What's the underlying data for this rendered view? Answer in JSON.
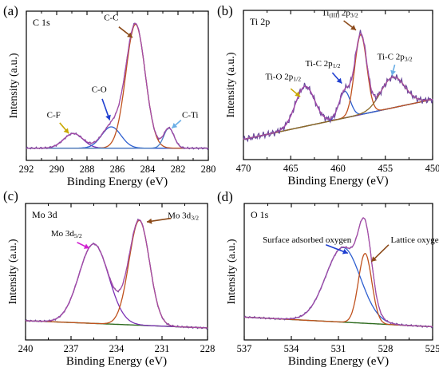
{
  "chart_data": [
    {
      "type": "line",
      "panel": "(a)",
      "title": "C 1s",
      "xlabel": "Binding Energy (eV)",
      "ylabel": "Intensity (a.u.)",
      "xlim": [
        292,
        280
      ],
      "ylim": [
        0,
        1
      ],
      "xticks": [
        292,
        290,
        288,
        286,
        284,
        282,
        280
      ],
      "grid": false,
      "background": {
        "a": 0.02,
        "b": 0.0,
        "step_center": 286.5,
        "step_width": 0.6,
        "step_height": 0.0
      },
      "peaks": [
        {
          "label": "C-F",
          "center": 288.9,
          "amplitude": 0.11,
          "fwhm": 1.5,
          "color": "#7b2fb5"
        },
        {
          "label": "C-O",
          "center": 286.4,
          "amplitude": 0.16,
          "fwhm": 1.5,
          "color": "#2e5fd0"
        },
        {
          "label": "C-C",
          "center": 284.8,
          "amplitude": 0.93,
          "fwhm": 1.5,
          "color": "#c0521e"
        },
        {
          "label": "C-Ti",
          "center": 282.6,
          "amplitude": 0.15,
          "fwhm": 0.8,
          "color": "#4a7fc6"
        }
      ],
      "annotations": [
        {
          "text": "C-C",
          "x": 286.4,
          "y": 0.98,
          "ax": 285.9,
          "ay": 0.93,
          "tx": 285.0,
          "ty": 0.85,
          "arrow_color": "#8b4a1a"
        },
        {
          "text": "C-O",
          "x": 287.2,
          "y": 0.44,
          "ax": 287.0,
          "ay": 0.39,
          "tx": 286.5,
          "ty": 0.23,
          "arrow_color": "#1f3fd0"
        },
        {
          "text": "C-F",
          "x": 290.2,
          "y": 0.25,
          "ax": 289.8,
          "ay": 0.21,
          "tx": 289.2,
          "ty": 0.13,
          "arrow_color": "#c9a800"
        },
        {
          "text": "C-Ti",
          "x": 281.2,
          "y": 0.25,
          "ax": 281.8,
          "ay": 0.23,
          "tx": 282.4,
          "ty": 0.17,
          "arrow_color": "#6aaee6"
        }
      ],
      "colors": {
        "raw": "#6a4a9a",
        "envelope": "#b04aa8",
        "background": "#2e6b1f"
      }
    },
    {
      "type": "line",
      "panel": "(b)",
      "title": "Ti 2p",
      "xlabel": "Binding Energy (eV)",
      "ylabel": "Intensity (a.u.)",
      "xlim": [
        470,
        450
      ],
      "ylim": [
        0,
        1
      ],
      "xticks": [
        470,
        465,
        460,
        455,
        450
      ],
      "grid": false,
      "background": {
        "a": 0.08,
        "b": 0.3,
        "step_center": 460,
        "step_width": 30,
        "step_height": 0.0
      },
      "peaks": [
        {
          "label": "Ti-O 2p1/2",
          "center": 463.5,
          "amplitude": 0.3,
          "fwhm": 2.4,
          "color": "#7b2fb5"
        },
        {
          "label": "Ti-C 2p1/2",
          "center": 459.3,
          "amplitude": 0.2,
          "fwhm": 1.4,
          "color": "#2e5fd0"
        },
        {
          "label": "Ti(III) 2p3/2",
          "center": 457.6,
          "amplitude": 0.6,
          "fwhm": 1.5,
          "color": "#c0521e"
        },
        {
          "label": "Ti-C 2p3/2",
          "center": 454.2,
          "amplitude": 0.23,
          "fwhm": 3.0,
          "color": "#8a6a2a"
        }
      ],
      "annotations": [
        {
          "text": "Ti-O 2p1/2",
          "x": 465.8,
          "y": 0.53,
          "ax": 465.0,
          "ay": 0.46,
          "tx": 464.0,
          "ty": 0.4,
          "arrow_color": "#c9a800"
        },
        {
          "text": "Ti-C 2p1/2",
          "x": 461.6,
          "y": 0.63,
          "ax": 460.6,
          "ay": 0.58,
          "tx": 459.6,
          "ty": 0.5,
          "arrow_color": "#1f3fd0"
        },
        {
          "text": "Ti(III) 2p3/2",
          "x": 459.8,
          "y": 1.01,
          "ax": 459.4,
          "ay": 0.97,
          "tx": 458.1,
          "ty": 0.9,
          "arrow_color": "#8b4a1a"
        },
        {
          "text": "Ti-C 2p3/2",
          "x": 454.0,
          "y": 0.68,
          "ax": 454.0,
          "ay": 0.64,
          "tx": 454.3,
          "ty": 0.56,
          "arrow_color": "#6aaee6"
        }
      ],
      "colors": {
        "raw": "#6a4a9a",
        "envelope": "#b04aa8",
        "background": "#2e6b1f"
      }
    },
    {
      "type": "line",
      "panel": "(c)",
      "title": "Mo 3d",
      "xlabel": "Binding Energy (eV)",
      "ylabel": "Intensity (a.u.)",
      "xlim": [
        240,
        228
      ],
      "ylim": [
        0,
        1
      ],
      "xticks": [
        240,
        237,
        234,
        231,
        228
      ],
      "grid": false,
      "background": {
        "a": 0.02,
        "b": 0.06,
        "step_center": 235,
        "step_width": 4,
        "step_height": 0.0
      },
      "peaks": [
        {
          "label": "Mo 3d5/2",
          "center": 235.5,
          "amplitude": 0.66,
          "fwhm": 2.3,
          "color": "#7b2fb5"
        },
        {
          "label": "Mo 3d3/2",
          "center": 232.5,
          "amplitude": 0.87,
          "fwhm": 1.6,
          "color": "#c0521e"
        }
      ],
      "annotations": [
        {
          "text": "Mo 3d5/2",
          "x": 237.3,
          "y": 0.78,
          "ax": 236.6,
          "ay": 0.73,
          "tx": 235.8,
          "ty": 0.68,
          "arrow_color": "#d01fd0"
        },
        {
          "text": "Mo 3d3/2",
          "x": 229.6,
          "y": 0.93,
          "ax": 230.4,
          "ay": 0.93,
          "tx": 232.0,
          "ty": 0.9,
          "arrow_color": "#8b4a1a"
        }
      ],
      "colors": {
        "raw": "#6a4a9a",
        "envelope": "#b04aa8",
        "background": "#2e6b1f"
      }
    },
    {
      "type": "line",
      "panel": "(d)",
      "title": "O 1s",
      "xlabel": "Binding Energy (eV)",
      "ylabel": "Intensity (a.u.)",
      "xlim": [
        537,
        525
      ],
      "ylim": [
        0,
        1
      ],
      "xticks": [
        537,
        534,
        531,
        528,
        525
      ],
      "grid": false,
      "background": {
        "a": 0.03,
        "b": 0.08,
        "step_center": 531,
        "step_width": 1.0,
        "step_height": 0.0
      },
      "peaks": [
        {
          "label": "Surface adsorbed oxygen",
          "center": 530.7,
          "amplitude": 0.62,
          "fwhm": 2.6,
          "color": "#2e5fd0"
        },
        {
          "label": "Lattice oxygen",
          "center": 529.3,
          "amplitude": 0.58,
          "fwhm": 1.0,
          "color": "#c0521e"
        }
      ],
      "annotations": [
        {
          "text": "Surface adsorbed oxygen",
          "x": 533.0,
          "y": 0.73,
          "ax": 531.8,
          "ay": 0.71,
          "tx": 530.4,
          "ty": 0.64,
          "arrow_color": "#1f3fd0"
        },
        {
          "text": "Lattice oxygen",
          "x": 526.0,
          "y": 0.73,
          "ax": 527.8,
          "ay": 0.71,
          "tx": 528.9,
          "ty": 0.57,
          "arrow_color": "#8b4a1a"
        }
      ],
      "colors": {
        "raw": "#6a4a9a",
        "envelope": "#b04aa8",
        "background": "#2e6b1f"
      }
    }
  ]
}
